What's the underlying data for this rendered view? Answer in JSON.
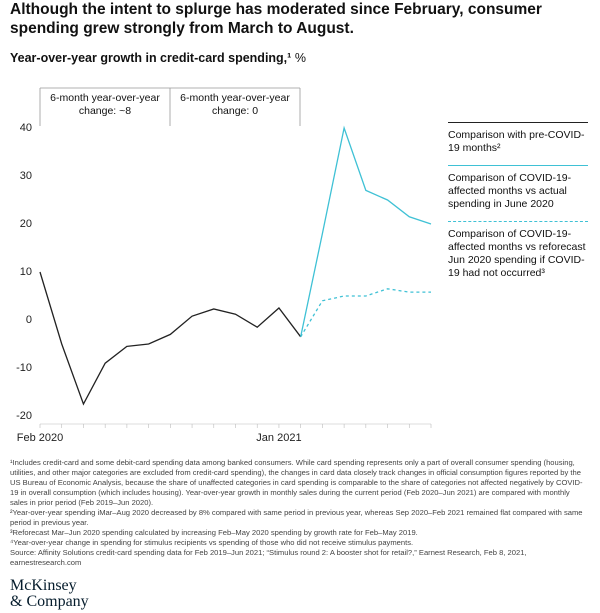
{
  "chart_data": {
    "type": "line",
    "title": "Although the intent to splurge has moderated since February, consumer spending grew strongly from March to August.",
    "subtitle": "Year-over-year growth in credit-card spending,¹",
    "unit": "%",
    "annotations": [
      "6-month year-over-year change: ~8",
      "6-month year-over-year change: 0"
    ],
    "categories": [
      "Feb 2020",
      null,
      null,
      null,
      null,
      null,
      null,
      null,
      null,
      null,
      null,
      "Jan 2021",
      null,
      null,
      null,
      null,
      null,
      null,
      null
    ],
    "series": [
      {
        "name": "Comparison with pre-COVID-19 months²",
        "color": "#222222",
        "style": "solid",
        "values": [
          10,
          -5,
          -17.5,
          -9,
          -5.5,
          -5,
          -3,
          0.8,
          2.3,
          1.2,
          -1.5,
          2.5,
          -3.5,
          null,
          null,
          null,
          null,
          null,
          null
        ]
      },
      {
        "name": "Comparison of COVID-19-affected months vs actual spending in June 2020",
        "color": "#3fc1d5",
        "style": "solid",
        "values": [
          null,
          null,
          null,
          null,
          null,
          null,
          null,
          null,
          null,
          null,
          null,
          null,
          -3.5,
          18,
          40,
          27,
          25,
          21.5,
          20
        ]
      },
      {
        "name": "Comparison of COVID-19-affected months vs reforecast Jun 2020 spending if COVID-19 had not occurred³",
        "color": "#3fc1d5",
        "style": "dashed",
        "values": [
          null,
          null,
          null,
          null,
          null,
          null,
          null,
          null,
          null,
          null,
          null,
          null,
          -3.5,
          4,
          5,
          5,
          6.5,
          5.8,
          5.8
        ]
      }
    ],
    "ylim": [
      -20,
      40
    ],
    "yticks": [
      -20,
      -10,
      0,
      10,
      20,
      30,
      40
    ],
    "grid": false,
    "footnotes": [
      "¹Includes credit-card and some debit-card spending data among banked consumers. While card spending represents only a part of overall consumer spending (housing, utilities, and other major categories are excluded from credit-card spending), the changes in card data closely track changes in official consumption figures reported by the US Bureau of Economic Analysis, because the share of unaffected categories in card spending is comparable to the share of categories not affected negatively by COVID-19 in overall consumption (which includes housing). Year-over-year growth in monthly sales during the current period (Feb 2020–Jun 2021) are compared with monthly sales in prior period (Feb 2019–Jun 2020).",
      "²Year-over-year spending iMar–Aug 2020 decreased by 8% compared with same period in previous year, whereas Sep 2020–Feb 2021 remained flat compared with same period in previous year.",
      "³Reforecast Mar–Jun 2020 spending calculated by increasing Feb–May 2020 spending by growth rate for Feb–May 2019.",
      "⁴Year-over-year change in spending for stimulus recipients vs spending of those who did not receive stimulus payments.",
      "Source: Affinity Solutions credit-card spending data for Feb 2019–Jun 2021; “Stimulus round 2: A booster shot for retail?,” Earnest Research, Feb 8, 2021, earnestresearch.com"
    ],
    "logo": [
      "McKinsey",
      "& Company"
    ]
  }
}
